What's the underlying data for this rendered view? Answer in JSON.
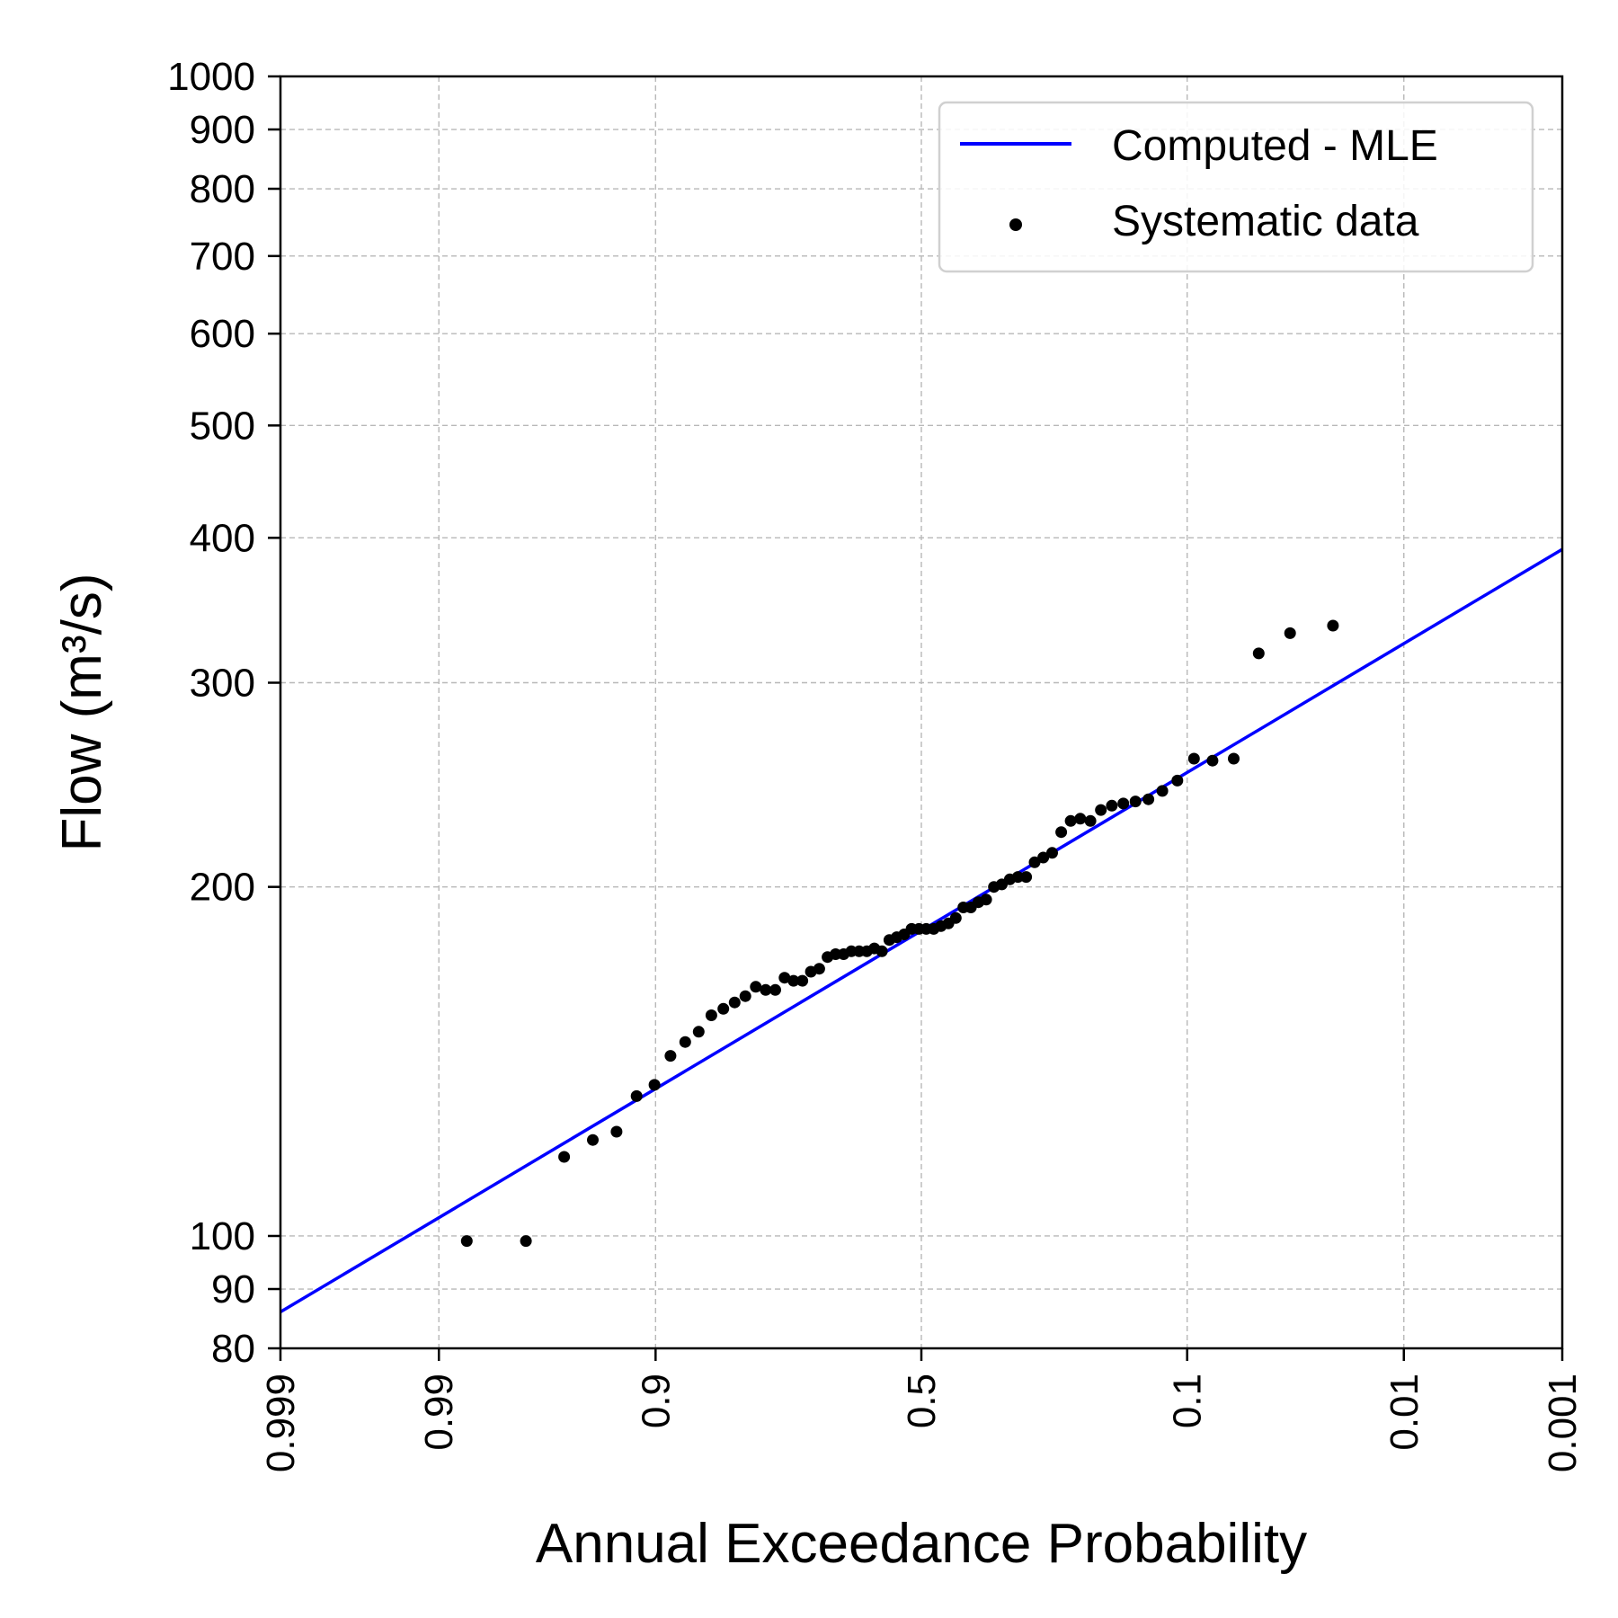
{
  "chart_data": {
    "type": "scatter",
    "xlabel": "Annual Exceedance Probability",
    "ylabel": "Flow (m³/s)",
    "x_scale": "normal-probability",
    "y_scale": "log",
    "xlim": [
      0.999,
      0.001
    ],
    "ylim": [
      80,
      1000
    ],
    "grid": true,
    "legend_position": "top-right",
    "x_ticks": [
      {
        "value": 0.999,
        "label": "0.999"
      },
      {
        "value": 0.99,
        "label": "0.99"
      },
      {
        "value": 0.9,
        "label": "0.9"
      },
      {
        "value": 0.5,
        "label": "0.5"
      },
      {
        "value": 0.1,
        "label": "0.1"
      },
      {
        "value": 0.01,
        "label": "0.01"
      },
      {
        "value": 0.001,
        "label": "0.001"
      }
    ],
    "y_ticks": [
      {
        "value": 80,
        "label": "80"
      },
      {
        "value": 90,
        "label": "90"
      },
      {
        "value": 100,
        "label": "100"
      },
      {
        "value": 200,
        "label": "200"
      },
      {
        "value": 300,
        "label": "300"
      },
      {
        "value": 400,
        "label": "400"
      },
      {
        "value": 500,
        "label": "500"
      },
      {
        "value": 600,
        "label": "600"
      },
      {
        "value": 700,
        "label": "700"
      },
      {
        "value": 800,
        "label": "800"
      },
      {
        "value": 900,
        "label": "900"
      },
      {
        "value": 1000,
        "label": "1000"
      }
    ],
    "series": [
      {
        "name": "Computed - MLE",
        "kind": "line",
        "color": "#0000ff",
        "points": [
          [
            0.999,
            86
          ],
          [
            0.001,
            391
          ]
        ]
      },
      {
        "name": "Systematic data",
        "kind": "scatter",
        "color": "#000000",
        "points": [
          [
            0.9858,
            99
          ],
          [
            0.9717,
            99
          ],
          [
            0.9575,
            117
          ],
          [
            0.9434,
            121
          ],
          [
            0.9292,
            123
          ],
          [
            0.9151,
            132
          ],
          [
            0.9009,
            135
          ],
          [
            0.8868,
            143
          ],
          [
            0.8726,
            147
          ],
          [
            0.8585,
            150
          ],
          [
            0.8443,
            155
          ],
          [
            0.8302,
            157
          ],
          [
            0.816,
            159
          ],
          [
            0.8019,
            161
          ],
          [
            0.7877,
            164
          ],
          [
            0.7736,
            163
          ],
          [
            0.7594,
            163
          ],
          [
            0.7453,
            167
          ],
          [
            0.7311,
            166
          ],
          [
            0.717,
            166
          ],
          [
            0.7028,
            169
          ],
          [
            0.6887,
            170
          ],
          [
            0.6745,
            174
          ],
          [
            0.6604,
            175
          ],
          [
            0.6462,
            175
          ],
          [
            0.6321,
            176
          ],
          [
            0.6179,
            176
          ],
          [
            0.6038,
            176
          ],
          [
            0.5896,
            177
          ],
          [
            0.5755,
            176
          ],
          [
            0.5613,
            180
          ],
          [
            0.5472,
            181
          ],
          [
            0.533,
            182
          ],
          [
            0.5189,
            184
          ],
          [
            0.5047,
            184
          ],
          [
            0.4906,
            184
          ],
          [
            0.4764,
            184
          ],
          [
            0.4623,
            185
          ],
          [
            0.4481,
            186
          ],
          [
            0.434,
            188
          ],
          [
            0.4198,
            192
          ],
          [
            0.4057,
            192
          ],
          [
            0.3915,
            194
          ],
          [
            0.3774,
            195
          ],
          [
            0.3632,
            200
          ],
          [
            0.3491,
            201
          ],
          [
            0.3349,
            203
          ],
          [
            0.3208,
            204
          ],
          [
            0.3066,
            204
          ],
          [
            0.2925,
            210
          ],
          [
            0.2783,
            212
          ],
          [
            0.2642,
            214
          ],
          [
            0.25,
            223
          ],
          [
            0.2358,
            228
          ],
          [
            0.2217,
            229
          ],
          [
            0.2075,
            228
          ],
          [
            0.1934,
            233
          ],
          [
            0.1792,
            235
          ],
          [
            0.1651,
            236
          ],
          [
            0.1509,
            237
          ],
          [
            0.1368,
            238
          ],
          [
            0.1226,
            242
          ],
          [
            0.1085,
            247
          ],
          [
            0.0943,
            258
          ],
          [
            0.0802,
            257
          ],
          [
            0.066,
            258
          ],
          [
            0.0519,
            318
          ],
          [
            0.0377,
            331
          ],
          [
            0.0236,
            336
          ]
        ]
      }
    ]
  }
}
